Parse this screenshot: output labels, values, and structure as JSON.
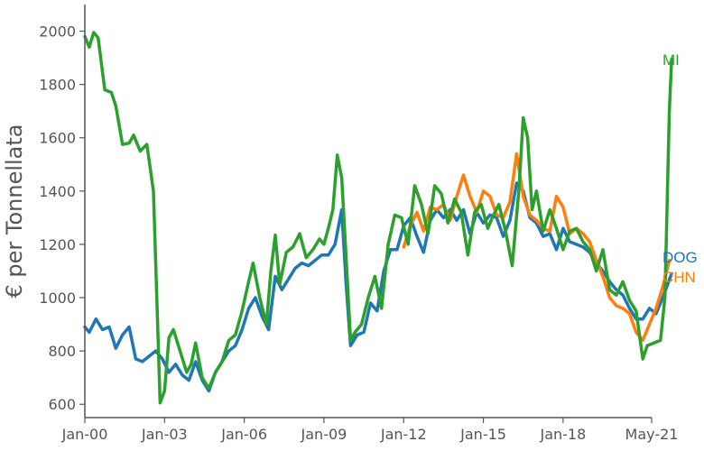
{
  "chart_data": {
    "type": "line",
    "title": "",
    "xlabel": "",
    "ylabel": "€ per Tonnellata",
    "x_ticks": [
      "Jan-00",
      "Jan-03",
      "Jan-06",
      "Jan-09",
      "Jan-12",
      "Jan-15",
      "Jan-18",
      "May-21"
    ],
    "y_ticks": [
      600,
      800,
      1000,
      1200,
      1400,
      1600,
      1800,
      2000
    ],
    "xlim": [
      "2000-01",
      "2021-05"
    ],
    "ylim": [
      550,
      2100
    ],
    "grid": false,
    "legend": "inline labels at line ends",
    "series": [
      {
        "name": "MI",
        "color": "#2ca02c",
        "points": [
          [
            "2000-01",
            1980
          ],
          [
            "2000-03",
            1940
          ],
          [
            "2000-05",
            1995
          ],
          [
            "2000-07",
            1975
          ],
          [
            "2000-10",
            1780
          ],
          [
            "2001-01",
            1770
          ],
          [
            "2001-03",
            1720
          ],
          [
            "2001-06",
            1575
          ],
          [
            "2001-09",
            1580
          ],
          [
            "2001-11",
            1610
          ],
          [
            "2002-02",
            1550
          ],
          [
            "2002-05",
            1575
          ],
          [
            "2002-08",
            1400
          ],
          [
            "2002-11",
            605
          ],
          [
            "2003-01",
            650
          ],
          [
            "2003-03",
            850
          ],
          [
            "2003-05",
            880
          ],
          [
            "2003-08",
            800
          ],
          [
            "2003-11",
            720
          ],
          [
            "2004-01",
            750
          ],
          [
            "2004-03",
            830
          ],
          [
            "2004-06",
            700
          ],
          [
            "2004-09",
            660
          ],
          [
            "2004-12",
            720
          ],
          [
            "2005-03",
            760
          ],
          [
            "2005-06",
            840
          ],
          [
            "2005-09",
            860
          ],
          [
            "2005-12",
            950
          ],
          [
            "2006-03",
            1060
          ],
          [
            "2006-05",
            1130
          ],
          [
            "2006-08",
            1000
          ],
          [
            "2006-11",
            900
          ],
          [
            "2007-01",
            1100
          ],
          [
            "2007-03",
            1235
          ],
          [
            "2007-05",
            1050
          ],
          [
            "2007-08",
            1170
          ],
          [
            "2007-11",
            1190
          ],
          [
            "2008-02",
            1240
          ],
          [
            "2008-05",
            1150
          ],
          [
            "2008-08",
            1180
          ],
          [
            "2008-11",
            1220
          ],
          [
            "2009-01",
            1200
          ],
          [
            "2009-03",
            1260
          ],
          [
            "2009-05",
            1330
          ],
          [
            "2009-07",
            1535
          ],
          [
            "2009-09",
            1450
          ],
          [
            "2009-11",
            1150
          ],
          [
            "2010-01",
            840
          ],
          [
            "2010-03",
            870
          ],
          [
            "2010-06",
            900
          ],
          [
            "2010-09",
            1000
          ],
          [
            "2010-12",
            1080
          ],
          [
            "2011-03",
            960
          ],
          [
            "2011-06",
            1200
          ],
          [
            "2011-09",
            1310
          ],
          [
            "2011-12",
            1300
          ],
          [
            "2012-03",
            1200
          ],
          [
            "2012-06",
            1420
          ],
          [
            "2012-09",
            1350
          ],
          [
            "2012-12",
            1240
          ],
          [
            "2013-03",
            1420
          ],
          [
            "2013-06",
            1390
          ],
          [
            "2013-09",
            1280
          ],
          [
            "2013-12",
            1370
          ],
          [
            "2014-03",
            1320
          ],
          [
            "2014-06",
            1160
          ],
          [
            "2014-09",
            1320
          ],
          [
            "2014-12",
            1350
          ],
          [
            "2015-03",
            1260
          ],
          [
            "2015-05",
            1300
          ],
          [
            "2015-08",
            1350
          ],
          [
            "2015-11",
            1250
          ],
          [
            "2016-02",
            1120
          ],
          [
            "2016-05",
            1400
          ],
          [
            "2016-07",
            1675
          ],
          [
            "2016-09",
            1600
          ],
          [
            "2016-11",
            1330
          ],
          [
            "2017-01",
            1400
          ],
          [
            "2017-04",
            1250
          ],
          [
            "2017-07",
            1330
          ],
          [
            "2017-10",
            1260
          ],
          [
            "2018-01",
            1180
          ],
          [
            "2018-04",
            1250
          ],
          [
            "2018-07",
            1260
          ],
          [
            "2018-10",
            1210
          ],
          [
            "2019-01",
            1180
          ],
          [
            "2019-04",
            1100
          ],
          [
            "2019-07",
            1180
          ],
          [
            "2019-10",
            1030
          ],
          [
            "2020-01",
            1010
          ],
          [
            "2020-04",
            1060
          ],
          [
            "2020-07",
            990
          ],
          [
            "2020-10",
            950
          ],
          [
            "2021-01",
            770
          ],
          [
            "2021-03",
            820
          ],
          [
            "2021-06",
            830
          ],
          [
            "2021-09",
            840
          ],
          [
            "2021-11",
            1000
          ],
          [
            "2022-01",
            1700
          ],
          [
            "2022-02",
            1895
          ]
        ]
      },
      {
        "name": "DOG",
        "color": "#1f77b4",
        "points": [
          [
            "2000-01",
            890
          ],
          [
            "2000-03",
            870
          ],
          [
            "2000-06",
            920
          ],
          [
            "2000-09",
            880
          ],
          [
            "2000-12",
            890
          ],
          [
            "2001-03",
            810
          ],
          [
            "2001-06",
            860
          ],
          [
            "2001-09",
            890
          ],
          [
            "2001-12",
            770
          ],
          [
            "2002-03",
            760
          ],
          [
            "2002-06",
            780
          ],
          [
            "2002-09",
            800
          ],
          [
            "2002-12",
            770
          ],
          [
            "2003-03",
            720
          ],
          [
            "2003-06",
            750
          ],
          [
            "2003-09",
            710
          ],
          [
            "2003-12",
            690
          ],
          [
            "2004-03",
            760
          ],
          [
            "2004-06",
            690
          ],
          [
            "2004-09",
            650
          ],
          [
            "2004-12",
            720
          ],
          [
            "2005-03",
            760
          ],
          [
            "2005-06",
            800
          ],
          [
            "2005-09",
            820
          ],
          [
            "2005-12",
            880
          ],
          [
            "2006-03",
            960
          ],
          [
            "2006-06",
            1000
          ],
          [
            "2006-09",
            930
          ],
          [
            "2006-12",
            880
          ],
          [
            "2007-03",
            1080
          ],
          [
            "2007-06",
            1030
          ],
          [
            "2007-09",
            1070
          ],
          [
            "2007-12",
            1110
          ],
          [
            "2008-03",
            1130
          ],
          [
            "2008-06",
            1120
          ],
          [
            "2008-09",
            1140
          ],
          [
            "2008-12",
            1160
          ],
          [
            "2009-03",
            1160
          ],
          [
            "2009-06",
            1200
          ],
          [
            "2009-09",
            1330
          ],
          [
            "2009-11",
            1050
          ],
          [
            "2010-01",
            820
          ],
          [
            "2010-04",
            860
          ],
          [
            "2010-07",
            870
          ],
          [
            "2010-10",
            980
          ],
          [
            "2011-01",
            950
          ],
          [
            "2011-04",
            1100
          ],
          [
            "2011-07",
            1180
          ],
          [
            "2011-10",
            1180
          ],
          [
            "2012-01",
            1270
          ],
          [
            "2012-04",
            1300
          ],
          [
            "2012-07",
            1230
          ],
          [
            "2012-10",
            1170
          ],
          [
            "2013-01",
            1290
          ],
          [
            "2013-04",
            1330
          ],
          [
            "2013-07",
            1300
          ],
          [
            "2013-10",
            1330
          ],
          [
            "2014-01",
            1290
          ],
          [
            "2014-04",
            1330
          ],
          [
            "2014-07",
            1240
          ],
          [
            "2014-10",
            1320
          ],
          [
            "2015-01",
            1280
          ],
          [
            "2015-04",
            1310
          ],
          [
            "2015-07",
            1300
          ],
          [
            "2015-10",
            1230
          ],
          [
            "2016-01",
            1290
          ],
          [
            "2016-04",
            1430
          ],
          [
            "2016-07",
            1400
          ],
          [
            "2016-10",
            1300
          ],
          [
            "2017-01",
            1280
          ],
          [
            "2017-04",
            1230
          ],
          [
            "2017-07",
            1240
          ],
          [
            "2017-10",
            1180
          ],
          [
            "2018-01",
            1260
          ],
          [
            "2018-04",
            1210
          ],
          [
            "2018-07",
            1200
          ],
          [
            "2018-10",
            1190
          ],
          [
            "2019-01",
            1170
          ],
          [
            "2019-04",
            1130
          ],
          [
            "2019-07",
            1100
          ],
          [
            "2019-10",
            1060
          ],
          [
            "2020-01",
            1030
          ],
          [
            "2020-04",
            1010
          ],
          [
            "2020-07",
            960
          ],
          [
            "2020-10",
            920
          ],
          [
            "2021-01",
            920
          ],
          [
            "2021-04",
            960
          ],
          [
            "2021-07",
            940
          ],
          [
            "2021-10",
            1000
          ],
          [
            "2022-02",
            1090
          ]
        ]
      },
      {
        "name": "CHN",
        "color": "#ff7f0e",
        "points": [
          [
            "2012-01",
            1190
          ],
          [
            "2012-04",
            1270
          ],
          [
            "2012-07",
            1320
          ],
          [
            "2012-10",
            1250
          ],
          [
            "2013-01",
            1340
          ],
          [
            "2013-04",
            1330
          ],
          [
            "2013-07",
            1350
          ],
          [
            "2013-10",
            1290
          ],
          [
            "2014-01",
            1380
          ],
          [
            "2014-04",
            1460
          ],
          [
            "2014-07",
            1380
          ],
          [
            "2014-10",
            1320
          ],
          [
            "2015-01",
            1400
          ],
          [
            "2015-04",
            1380
          ],
          [
            "2015-07",
            1310
          ],
          [
            "2015-10",
            1300
          ],
          [
            "2016-01",
            1360
          ],
          [
            "2016-04",
            1540
          ],
          [
            "2016-07",
            1380
          ],
          [
            "2016-10",
            1310
          ],
          [
            "2017-01",
            1290
          ],
          [
            "2017-04",
            1260
          ],
          [
            "2017-07",
            1250
          ],
          [
            "2017-10",
            1380
          ],
          [
            "2018-01",
            1340
          ],
          [
            "2018-04",
            1240
          ],
          [
            "2018-07",
            1260
          ],
          [
            "2018-10",
            1240
          ],
          [
            "2019-01",
            1210
          ],
          [
            "2019-04",
            1140
          ],
          [
            "2019-07",
            1080
          ],
          [
            "2019-10",
            1000
          ],
          [
            "2020-01",
            970
          ],
          [
            "2020-04",
            960
          ],
          [
            "2020-07",
            940
          ],
          [
            "2020-10",
            870
          ],
          [
            "2021-01",
            840
          ],
          [
            "2021-04",
            900
          ],
          [
            "2021-07",
            960
          ],
          [
            "2021-10",
            1040
          ],
          [
            "2022-01",
            1140
          ]
        ]
      }
    ]
  }
}
